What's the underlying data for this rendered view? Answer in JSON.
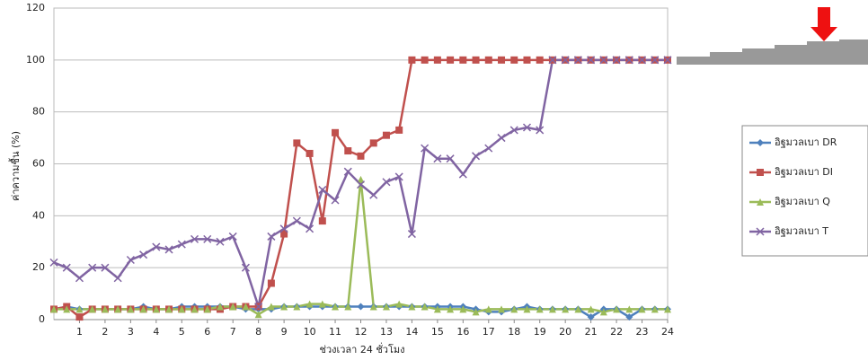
{
  "chart_data": {
    "type": "line",
    "y_label": "ค่าความชื้น (%)",
    "x_label": "ช่วงเวลา 24 ชั่วโมง",
    "x": [
      0,
      0.5,
      1,
      1.5,
      2,
      2.5,
      3,
      3.5,
      4,
      4.5,
      5,
      5.5,
      6,
      6.5,
      7,
      7.5,
      8,
      8.5,
      9,
      9.5,
      10,
      10.5,
      11,
      11.5,
      12,
      12.5,
      13,
      13.5,
      14,
      14.5,
      15,
      15.5,
      16,
      16.5,
      17,
      17.5,
      18,
      18.5,
      19,
      19.5,
      20,
      20.5,
      21,
      21.5,
      22,
      22.5,
      23,
      23.5,
      24
    ],
    "xlim": [
      0,
      24
    ],
    "xticks": [
      1,
      2,
      3,
      4,
      5,
      6,
      7,
      8,
      9,
      10,
      11,
      12,
      13,
      14,
      15,
      16,
      17,
      18,
      19,
      20,
      21,
      22,
      23,
      24
    ],
    "ylim": [
      0,
      120
    ],
    "yticks": [
      0,
      20,
      40,
      60,
      80,
      100,
      120
    ],
    "grid": true,
    "legend": "right",
    "series": [
      {
        "name": "อิฐมวลเบา DR",
        "color": "#4f81bd",
        "marker": "diamond",
        "values": [
          4,
          5,
          4,
          4,
          4,
          4,
          4,
          5,
          4,
          4,
          5,
          5,
          5,
          5,
          5,
          4,
          4,
          4,
          5,
          5,
          5,
          5,
          5,
          5,
          5,
          5,
          5,
          5,
          5,
          5,
          5,
          5,
          5,
          4,
          3,
          3,
          4,
          5,
          4,
          4,
          4,
          4,
          1,
          4,
          4,
          1,
          4,
          4,
          4
        ]
      },
      {
        "name": "อิฐมวลเบา DI",
        "color": "#c0504d",
        "marker": "square",
        "values": [
          4,
          5,
          1,
          4,
          4,
          4,
          4,
          4,
          4,
          4,
          4,
          4,
          4,
          4,
          5,
          5,
          5,
          14,
          33,
          68,
          64,
          38,
          72,
          65,
          63,
          68,
          71,
          73,
          100,
          100,
          100,
          100,
          100,
          100,
          100,
          100,
          100,
          100,
          100,
          100,
          100,
          100,
          100,
          100,
          100,
          100,
          100,
          100,
          100
        ]
      },
      {
        "name": "อิฐมวลเบา Q",
        "color": "#9bbb59",
        "marker": "triangle",
        "values": [
          4,
          4,
          4,
          4,
          4,
          4,
          4,
          4,
          4,
          4,
          4,
          4,
          4,
          5,
          5,
          5,
          2,
          5,
          5,
          5,
          6,
          6,
          5,
          5,
          54,
          5,
          5,
          6,
          5,
          5,
          4,
          4,
          4,
          3,
          4,
          4,
          4,
          4,
          4,
          4,
          4,
          4,
          4,
          3,
          4,
          4,
          4,
          4,
          4
        ]
      },
      {
        "name": "อิฐมวลเบา T",
        "color": "#8064a2",
        "marker": "x",
        "values": [
          22,
          20,
          16,
          20,
          20,
          16,
          23,
          25,
          28,
          27,
          29,
          31,
          31,
          30,
          32,
          20,
          5,
          32,
          35,
          38,
          35,
          50,
          46,
          57,
          52,
          48,
          53,
          55,
          33,
          66,
          62,
          62,
          56,
          63,
          66,
          70,
          73,
          74,
          73,
          100,
          100,
          100,
          100,
          100,
          100,
          100,
          100,
          100,
          100
        ]
      }
    ]
  }
}
